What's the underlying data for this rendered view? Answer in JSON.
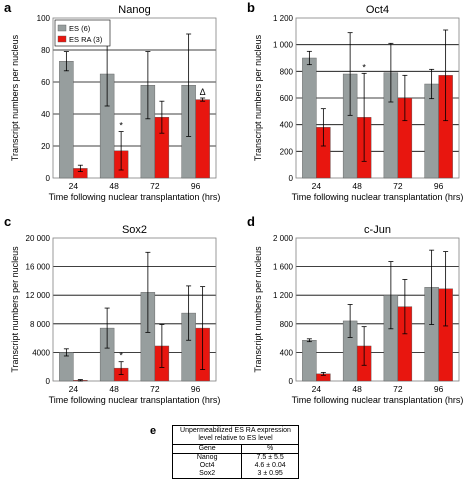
{
  "figure": {
    "colors": {
      "es": "#979e9e",
      "es_ra": "#e8160f",
      "grid": "#000000",
      "axis": "#808080"
    },
    "panels": [
      {
        "letter": "a",
        "title": "Nanog",
        "ylabel": "Transcript numbers per nucleus",
        "xlabel": "Time following nuclear transplantation (hrs)",
        "legend": [
          "ES (6)",
          "ES RA (3)"
        ]
      },
      {
        "letter": "b",
        "title": "Oct4",
        "ylabel": "Transcript numbers per nucleus",
        "xlabel": "Time following nuclear transplantation (hrs)"
      },
      {
        "letter": "c",
        "title": "Sox2",
        "ylabel": "Transcript numbers per nucleus",
        "xlabel": "Time following nuclear transplantation (hrs)"
      },
      {
        "letter": "d",
        "title": "c-Jun",
        "ylabel": "Transcript numbers per nucleus",
        "xlabel": "Time following nuclear transplantation (hrs)"
      }
    ]
  },
  "chart_data": [
    {
      "type": "bar",
      "title": "Nanog",
      "categories": [
        "24",
        "48",
        "72",
        "96"
      ],
      "series": [
        {
          "name": "ES (6)",
          "values": [
            73,
            65,
            58,
            58
          ],
          "errors": [
            6,
            20,
            21,
            32
          ]
        },
        {
          "name": "ES RA (3)",
          "values": [
            6,
            17,
            38,
            49
          ],
          "errors": [
            2,
            12,
            10,
            1
          ]
        }
      ],
      "ylim": [
        0,
        100
      ],
      "yticks": [
        "0",
        "20",
        "40",
        "60",
        "80",
        "100"
      ],
      "annotations": [
        {
          "category": "48",
          "series": "ES RA (3)",
          "text": "*"
        },
        {
          "category": "96",
          "series": "ES RA (3)",
          "text": "Δ"
        }
      ],
      "grid": true,
      "legend": "top-left"
    },
    {
      "type": "bar",
      "title": "Oct4",
      "categories": [
        "24",
        "48",
        "72",
        "96"
      ],
      "series": [
        {
          "values": [
            900,
            780,
            790,
            705
          ],
          "errors": [
            50,
            310,
            220,
            110
          ]
        },
        {
          "values": [
            380,
            455,
            600,
            770
          ],
          "errors": [
            140,
            330,
            170,
            340
          ]
        }
      ],
      "ylim": [
        0,
        1200
      ],
      "yticks": [
        "0",
        "200",
        "400",
        "600",
        "800",
        "1 000",
        "1 200"
      ],
      "annotations": [
        {
          "category": "48",
          "series": 2,
          "text": "*"
        }
      ],
      "grid": true
    },
    {
      "type": "bar",
      "title": "Sox2",
      "categories": [
        "24",
        "48",
        "72",
        "96"
      ],
      "series": [
        {
          "values": [
            4000,
            7400,
            12400,
            9500
          ],
          "errors": [
            500,
            2800,
            5600,
            3800
          ]
        },
        {
          "values": [
            100,
            1800,
            4900,
            7400
          ],
          "errors": [
            100,
            900,
            3000,
            5800
          ]
        }
      ],
      "ylim": [
        0,
        20000
      ],
      "yticks": [
        "0",
        "4000",
        "8 000",
        "12 000",
        "16 000",
        "20 000"
      ],
      "annotations": [
        {
          "category": "48",
          "series": 2,
          "text": "*"
        }
      ],
      "grid": true
    },
    {
      "type": "bar",
      "title": "c-Jun",
      "categories": [
        "24",
        "48",
        "72",
        "96"
      ],
      "series": [
        {
          "values": [
            570,
            840,
            1200,
            1310
          ],
          "errors": [
            20,
            230,
            470,
            520
          ]
        },
        {
          "values": [
            100,
            490,
            1040,
            1290
          ],
          "errors": [
            20,
            270,
            380,
            520
          ]
        }
      ],
      "ylim": [
        0,
        2000
      ],
      "yticks": [
        "0",
        "400",
        "800",
        "1 200",
        "1 600",
        "2 000"
      ],
      "grid": true
    }
  ],
  "table": {
    "letter": "e",
    "caption": "Unpermeabilized ES RA expression level relative to ES level",
    "headers": [
      "Gene",
      "%"
    ],
    "rows": [
      [
        "Nanog",
        "7.5 ± 5.5"
      ],
      [
        "Oct4",
        "4.6 ± 0.04"
      ],
      [
        "Sox2",
        "3 ± 0.95"
      ]
    ]
  }
}
